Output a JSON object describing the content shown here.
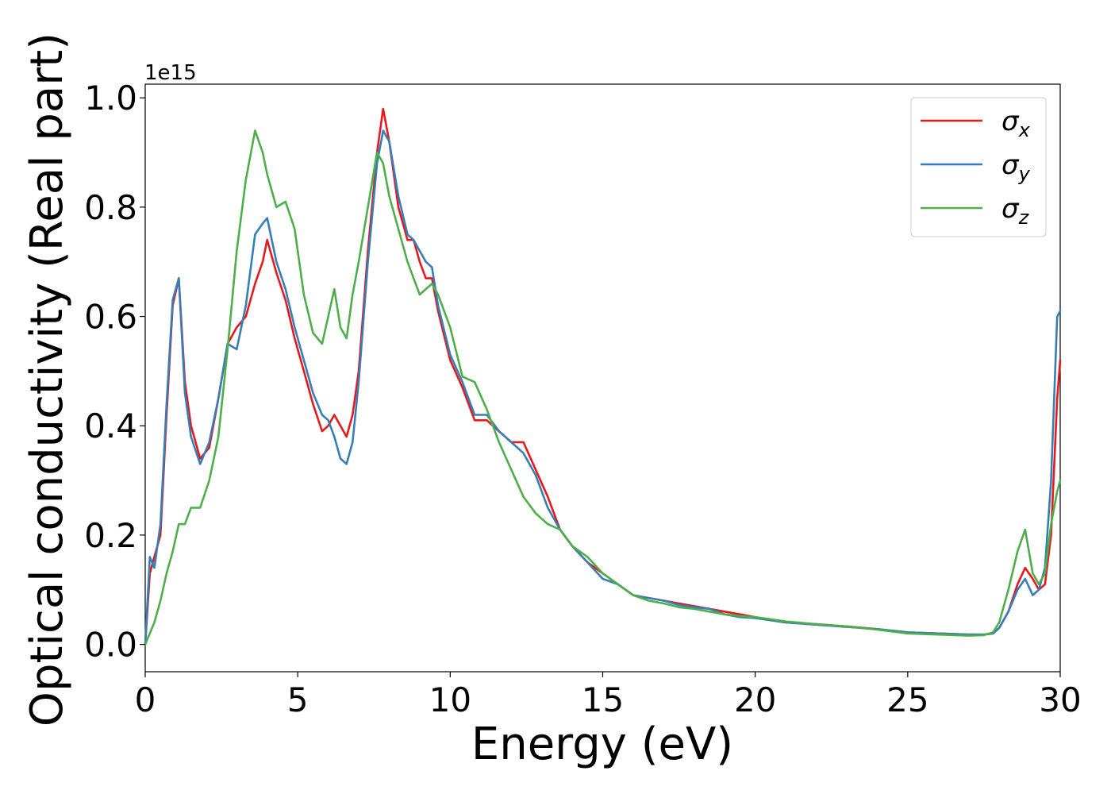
{
  "chart_data": {
    "type": "line",
    "title": "",
    "xlabel": "Energy (eV)",
    "ylabel": "Optical conductivity (Real part)",
    "y_offset_text": "1e15",
    "xlim": [
      0,
      30
    ],
    "ylim": [
      -0.05,
      1.025
    ],
    "xticks": [
      0,
      5,
      10,
      15,
      20,
      25,
      30
    ],
    "xtick_labels": [
      "0",
      "5",
      "10",
      "15",
      "20",
      "25",
      "30"
    ],
    "yticks": [
      0.0,
      0.2,
      0.4,
      0.6,
      0.8,
      1.0
    ],
    "ytick_labels": [
      "0.0",
      "0.2",
      "0.4",
      "0.6",
      "0.8",
      "1.0"
    ],
    "grid": false,
    "legend": {
      "position": "top-right",
      "entries": [
        {
          "symbol": "σ",
          "subscript": "x"
        },
        {
          "symbol": "σ",
          "subscript": "y"
        },
        {
          "symbol": "σ",
          "subscript": "z"
        }
      ]
    },
    "series": [
      {
        "legend_index": 0,
        "color": "#e41a1c",
        "x": [
          0,
          0.15,
          0.3,
          0.5,
          0.7,
          0.9,
          1.1,
          1.3,
          1.5,
          1.8,
          2.1,
          2.4,
          2.7,
          3.0,
          3.3,
          3.6,
          3.85,
          4.0,
          4.3,
          4.6,
          4.9,
          5.2,
          5.5,
          5.8,
          6.0,
          6.2,
          6.4,
          6.6,
          6.8,
          7.0,
          7.3,
          7.6,
          7.8,
          8.0,
          8.3,
          8.6,
          8.8,
          9.0,
          9.2,
          9.4,
          9.6,
          10.0,
          10.4,
          10.8,
          11.2,
          11.6,
          12.0,
          12.4,
          12.8,
          13.2,
          13.6,
          14.0,
          14.5,
          15.0,
          15.5,
          16.0,
          16.5,
          17.0,
          17.5,
          18.0,
          18.5,
          19.0,
          19.5,
          20,
          21,
          22,
          23,
          24,
          25,
          26,
          27,
          27.5,
          27.8,
          28.0,
          28.3,
          28.6,
          28.85,
          29.1,
          29.3,
          29.5,
          29.7,
          29.9,
          30.0
        ],
        "y": [
          0,
          0.13,
          0.16,
          0.2,
          0.42,
          0.62,
          0.67,
          0.48,
          0.4,
          0.34,
          0.36,
          0.45,
          0.55,
          0.58,
          0.6,
          0.66,
          0.7,
          0.74,
          0.68,
          0.63,
          0.56,
          0.5,
          0.44,
          0.39,
          0.4,
          0.42,
          0.4,
          0.38,
          0.42,
          0.5,
          0.72,
          0.9,
          0.98,
          0.92,
          0.8,
          0.74,
          0.74,
          0.7,
          0.67,
          0.67,
          0.61,
          0.52,
          0.47,
          0.41,
          0.41,
          0.39,
          0.37,
          0.37,
          0.32,
          0.27,
          0.21,
          0.18,
          0.15,
          0.13,
          0.11,
          0.09,
          0.085,
          0.08,
          0.075,
          0.07,
          0.065,
          0.06,
          0.055,
          0.05,
          0.04,
          0.037,
          0.033,
          0.028,
          0.022,
          0.02,
          0.018,
          0.018,
          0.02,
          0.03,
          0.06,
          0.11,
          0.14,
          0.12,
          0.1,
          0.11,
          0.2,
          0.45,
          0.52
        ]
      },
      {
        "legend_index": 1,
        "color": "#377eb8",
        "x": [
          0,
          0.15,
          0.3,
          0.5,
          0.7,
          0.9,
          1.1,
          1.3,
          1.5,
          1.8,
          2.1,
          2.4,
          2.7,
          3.0,
          3.3,
          3.6,
          3.85,
          4.0,
          4.3,
          4.6,
          4.9,
          5.2,
          5.5,
          5.8,
          6.0,
          6.2,
          6.4,
          6.6,
          6.8,
          7.0,
          7.3,
          7.6,
          7.8,
          8.0,
          8.3,
          8.6,
          8.8,
          9.0,
          9.2,
          9.4,
          9.6,
          10.0,
          10.4,
          10.8,
          11.2,
          11.6,
          12.0,
          12.4,
          12.8,
          13.2,
          13.6,
          14.0,
          14.5,
          15.0,
          15.5,
          16.0,
          16.5,
          17.0,
          17.5,
          18.0,
          18.5,
          19.0,
          19.5,
          20,
          21,
          22,
          23,
          24,
          25,
          26,
          27,
          27.5,
          27.8,
          28.0,
          28.3,
          28.6,
          28.85,
          29.1,
          29.3,
          29.5,
          29.7,
          29.9,
          30.0
        ],
        "y": [
          0,
          0.16,
          0.14,
          0.22,
          0.44,
          0.63,
          0.67,
          0.46,
          0.38,
          0.33,
          0.37,
          0.45,
          0.55,
          0.54,
          0.62,
          0.75,
          0.77,
          0.78,
          0.7,
          0.65,
          0.58,
          0.52,
          0.46,
          0.42,
          0.41,
          0.38,
          0.34,
          0.33,
          0.37,
          0.48,
          0.7,
          0.88,
          0.94,
          0.92,
          0.82,
          0.75,
          0.74,
          0.72,
          0.7,
          0.69,
          0.62,
          0.53,
          0.48,
          0.42,
          0.42,
          0.39,
          0.37,
          0.35,
          0.31,
          0.25,
          0.21,
          0.18,
          0.15,
          0.12,
          0.11,
          0.09,
          0.085,
          0.08,
          0.072,
          0.068,
          0.065,
          0.055,
          0.05,
          0.048,
          0.04,
          0.036,
          0.032,
          0.028,
          0.022,
          0.02,
          0.018,
          0.018,
          0.02,
          0.03,
          0.06,
          0.1,
          0.12,
          0.09,
          0.1,
          0.14,
          0.3,
          0.6,
          0.61
        ]
      },
      {
        "legend_index": 2,
        "color": "#4daf4a",
        "x": [
          0,
          0.15,
          0.3,
          0.5,
          0.7,
          0.9,
          1.1,
          1.3,
          1.5,
          1.8,
          2.1,
          2.4,
          2.7,
          3.0,
          3.3,
          3.6,
          3.85,
          4.0,
          4.3,
          4.6,
          4.9,
          5.2,
          5.5,
          5.8,
          6.0,
          6.2,
          6.4,
          6.6,
          6.8,
          7.0,
          7.3,
          7.6,
          7.8,
          8.0,
          8.3,
          8.6,
          8.8,
          9.0,
          9.2,
          9.4,
          9.6,
          10.0,
          10.4,
          10.8,
          11.2,
          11.6,
          12.0,
          12.4,
          12.8,
          13.2,
          13.6,
          14.0,
          14.5,
          15.0,
          15.5,
          16.0,
          16.5,
          17.0,
          17.5,
          18.0,
          18.5,
          19.0,
          19.5,
          20,
          21,
          22,
          23,
          24,
          25,
          26,
          27,
          27.5,
          27.8,
          28.0,
          28.3,
          28.6,
          28.85,
          29.1,
          29.3,
          29.5,
          29.7,
          29.9,
          30.0
        ],
        "y": [
          0,
          0.02,
          0.04,
          0.08,
          0.13,
          0.17,
          0.22,
          0.22,
          0.25,
          0.25,
          0.3,
          0.38,
          0.54,
          0.72,
          0.85,
          0.94,
          0.9,
          0.86,
          0.8,
          0.81,
          0.76,
          0.64,
          0.57,
          0.55,
          0.6,
          0.65,
          0.58,
          0.56,
          0.64,
          0.7,
          0.8,
          0.9,
          0.88,
          0.82,
          0.76,
          0.7,
          0.67,
          0.64,
          0.65,
          0.66,
          0.64,
          0.58,
          0.49,
          0.48,
          0.43,
          0.37,
          0.32,
          0.27,
          0.24,
          0.22,
          0.21,
          0.18,
          0.16,
          0.13,
          0.11,
          0.09,
          0.08,
          0.075,
          0.068,
          0.065,
          0.06,
          0.055,
          0.052,
          0.05,
          0.042,
          0.037,
          0.033,
          0.027,
          0.02,
          0.018,
          0.016,
          0.017,
          0.022,
          0.04,
          0.1,
          0.17,
          0.21,
          0.13,
          0.11,
          0.13,
          0.22,
          0.28,
          0.3
        ]
      }
    ]
  }
}
